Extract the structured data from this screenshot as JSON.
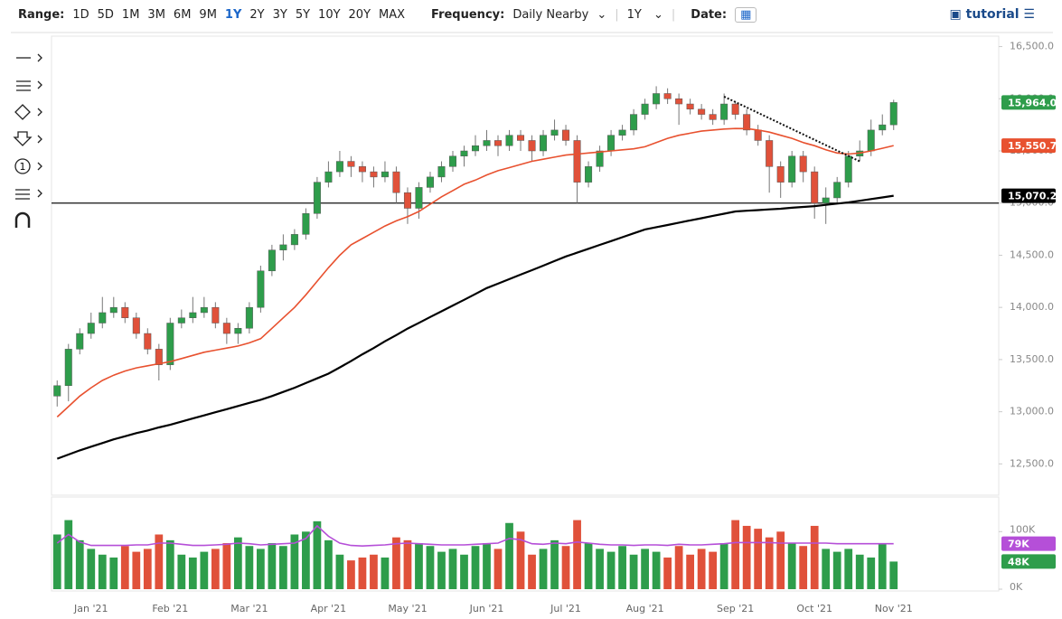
{
  "toolbar": {
    "range_label": "Range:",
    "ranges": [
      "1D",
      "5D",
      "1M",
      "3M",
      "6M",
      "9M",
      "1Y",
      "2Y",
      "3Y",
      "5Y",
      "10Y",
      "20Y",
      "MAX"
    ],
    "active_range": "1Y",
    "frequency_label": "Frequency:",
    "frequency": "Daily Nearby",
    "period": "1Y",
    "date_label": "Date:",
    "brand": "tutorial"
  },
  "sidebar": {
    "counter": "1"
  },
  "chart_data": [
    {
      "type": "candlestick",
      "categories": [
        null,
        null,
        null,
        "Jan '21",
        null,
        null,
        null,
        null,
        null,
        null,
        "Feb '21",
        null,
        null,
        null,
        null,
        null,
        null,
        "Mar '21",
        null,
        null,
        null,
        null,
        null,
        null,
        "Apr '21",
        null,
        null,
        null,
        null,
        null,
        null,
        "May '21",
        null,
        null,
        null,
        null,
        null,
        null,
        "Jun '21",
        null,
        null,
        null,
        null,
        null,
        null,
        "Jul '21",
        null,
        null,
        null,
        null,
        null,
        null,
        "Aug '21",
        null,
        null,
        null,
        null,
        null,
        null,
        null,
        "Sep '21",
        null,
        null,
        null,
        null,
        null,
        null,
        "Oct '21",
        null,
        null,
        null,
        null,
        null,
        null,
        "Nov '21"
      ],
      "open": [
        13150,
        13250,
        13600,
        13750,
        13850,
        13950,
        14000,
        13900,
        13750,
        13600,
        13450,
        13850,
        13900,
        13950,
        14000,
        13850,
        13750,
        13800,
        14000,
        14350,
        14550,
        14600,
        14700,
        14900,
        15200,
        15300,
        15400,
        15350,
        15300,
        15250,
        15300,
        15100,
        14950,
        15150,
        15250,
        15350,
        15450,
        15500,
        15550,
        15600,
        15550,
        15650,
        15600,
        15500,
        15650,
        15700,
        15600,
        15200,
        15350,
        15500,
        15650,
        15700,
        15850,
        15950,
        16050,
        16000,
        15950,
        15900,
        15850,
        15800,
        15950,
        15850,
        15700,
        15600,
        15350,
        15200,
        15450,
        15300,
        15000,
        15050,
        15200,
        15450,
        15500,
        15700,
        15750
      ],
      "high": [
        13300,
        13650,
        13800,
        13950,
        14100,
        14100,
        14050,
        13950,
        13800,
        13650,
        13900,
        13980,
        14100,
        14100,
        14050,
        13900,
        13850,
        14050,
        14400,
        14600,
        14700,
        14750,
        14950,
        15250,
        15400,
        15500,
        15450,
        15400,
        15350,
        15400,
        15350,
        15150,
        15200,
        15300,
        15400,
        15500,
        15550,
        15650,
        15700,
        15650,
        15700,
        15700,
        15650,
        15700,
        15800,
        15750,
        15650,
        15400,
        15550,
        15700,
        15750,
        15900,
        16000,
        16120,
        16100,
        16050,
        16000,
        15950,
        15900,
        16050,
        15980,
        15900,
        15750,
        15650,
        15400,
        15500,
        15500,
        15350,
        15150,
        15250,
        15500,
        15600,
        15800,
        15850,
        15990
      ],
      "low": [
        13050,
        13100,
        13550,
        13700,
        13800,
        13900,
        13850,
        13700,
        13550,
        13300,
        13400,
        13800,
        13850,
        13900,
        13800,
        13650,
        13650,
        13750,
        13950,
        14300,
        14450,
        14550,
        14650,
        14850,
        15150,
        15250,
        15250,
        15200,
        15150,
        15200,
        15000,
        14800,
        14850,
        15100,
        15200,
        15300,
        15350,
        15450,
        15500,
        15450,
        15500,
        15500,
        15400,
        15450,
        15600,
        15550,
        15000,
        15150,
        15300,
        15450,
        15600,
        15650,
        15800,
        15900,
        15950,
        15750,
        15850,
        15800,
        15750,
        15750,
        15800,
        15650,
        15550,
        15100,
        15050,
        15150,
        15200,
        14850,
        14800,
        15000,
        15150,
        15400,
        15450,
        15650,
        15700
      ],
      "close": [
        13250,
        13600,
        13750,
        13850,
        13950,
        14000,
        13900,
        13750,
        13600,
        13450,
        13850,
        13900,
        13950,
        14000,
        13850,
        13750,
        13800,
        14000,
        14350,
        14550,
        14600,
        14700,
        14900,
        15200,
        15300,
        15400,
        15350,
        15300,
        15250,
        15300,
        15100,
        14950,
        15150,
        15250,
        15350,
        15450,
        15500,
        15550,
        15600,
        15550,
        15650,
        15600,
        15500,
        15650,
        15700,
        15600,
        15200,
        15350,
        15500,
        15650,
        15700,
        15850,
        15950,
        16050,
        16000,
        15950,
        15900,
        15850,
        15800,
        15950,
        15850,
        15700,
        15600,
        15350,
        15200,
        15450,
        15300,
        15000,
        15050,
        15200,
        15450,
        15500,
        15700,
        15750,
        15964
      ],
      "close_label": "15,964.0",
      "up_color": "#2e9d4b",
      "down_color": "#e0513a",
      "series": [
        {
          "color": "#e8512f",
          "values": [
            12950,
            13050,
            13150,
            13230,
            13300,
            13350,
            13390,
            13420,
            13440,
            13460,
            13480,
            13510,
            13540,
            13570,
            13590,
            13610,
            13630,
            13660,
            13700,
            13800,
            13900,
            14000,
            14120,
            14250,
            14380,
            14500,
            14600,
            14660,
            14720,
            14780,
            14830,
            14870,
            14920,
            14990,
            15060,
            15120,
            15180,
            15220,
            15270,
            15310,
            15340,
            15370,
            15400,
            15420,
            15440,
            15460,
            15470,
            15480,
            15490,
            15500,
            15510,
            15520,
            15540,
            15580,
            15620,
            15650,
            15670,
            15690,
            15700,
            15710,
            15715,
            15714,
            15700,
            15680,
            15650,
            15620,
            15580,
            15550,
            15510,
            15480,
            15470,
            15480,
            15500,
            15525,
            15550.7
          ],
          "last_label": "15,550.7"
        },
        {
          "color": "#000000",
          "values": [
            12550,
            12590,
            12630,
            12665,
            12700,
            12735,
            12765,
            12795,
            12820,
            12850,
            12875,
            12905,
            12935,
            12965,
            12995,
            13025,
            13055,
            13085,
            13115,
            13150,
            13190,
            13230,
            13275,
            13320,
            13365,
            13425,
            13485,
            13550,
            13610,
            13675,
            13735,
            13797,
            13852,
            13908,
            13963,
            14018,
            14073,
            14129,
            14185,
            14228,
            14271,
            14314,
            14357,
            14400,
            14444,
            14488,
            14525,
            14562,
            14599,
            14636,
            14673,
            14710,
            14747,
            14769,
            14790,
            14812,
            14834,
            14855,
            14877,
            14898,
            14920,
            14927,
            14933,
            14940,
            14946,
            14955,
            14963,
            14971,
            14983,
            14995,
            15006,
            15022,
            15038,
            15054,
            15070.2
          ],
          "last_label": "15,070.2"
        }
      ],
      "level": 15000,
      "trendline": {
        "start": [
          59,
          16020
        ],
        "end": [
          71,
          15400
        ]
      },
      "ylim": [
        12200,
        16600
      ],
      "yticks": [
        {
          "value": 12500,
          "label": "12,500.0"
        },
        {
          "value": 13000,
          "label": "13,000.0"
        },
        {
          "value": 13500,
          "label": "13,500.0"
        },
        {
          "value": 14000,
          "label": "14,000.0"
        },
        {
          "value": 14500,
          "label": "14,500.0"
        },
        {
          "value": 15000,
          "label": "15,000.0"
        },
        {
          "value": 15500,
          "label": "15,500.0"
        },
        {
          "value": 16000,
          "label": "16,000.0"
        },
        {
          "value": 16500,
          "label": "16,500.0"
        }
      ]
    },
    {
      "type": "bar",
      "values": [
        95000,
        120000,
        85000,
        70000,
        60000,
        55000,
        75000,
        65000,
        70000,
        95000,
        85000,
        60000,
        55000,
        65000,
        70000,
        80000,
        90000,
        75000,
        70000,
        80000,
        75000,
        95000,
        100000,
        118000,
        85000,
        60000,
        50000,
        55000,
        60000,
        55000,
        90000,
        85000,
        80000,
        75000,
        65000,
        70000,
        60000,
        75000,
        80000,
        70000,
        115000,
        100000,
        60000,
        70000,
        85000,
        75000,
        120000,
        80000,
        70000,
        65000,
        75000,
        60000,
        70000,
        65000,
        55000,
        75000,
        60000,
        70000,
        65000,
        80000,
        120000,
        110000,
        105000,
        90000,
        100000,
        80000,
        75000,
        110000,
        70000,
        65000,
        70000,
        60000,
        55000,
        80000,
        48000
      ],
      "last_label": "48K",
      "series": [
        {
          "color": "#b54fd8",
          "values": [
            80000,
            95000,
            82000,
            76000,
            76000,
            76000,
            76000,
            77000,
            77000,
            80000,
            80000,
            78000,
            76000,
            76000,
            77000,
            78000,
            80000,
            79000,
            77000,
            78000,
            79000,
            80000,
            88000,
            110000,
            92000,
            80000,
            76000,
            75000,
            76000,
            77000,
            79000,
            80000,
            79000,
            78000,
            77000,
            77000,
            77000,
            78000,
            79000,
            80000,
            88000,
            86000,
            79000,
            78000,
            80000,
            79000,
            82000,
            80000,
            78000,
            77000,
            77000,
            76000,
            77000,
            77000,
            76000,
            78000,
            77000,
            77000,
            78000,
            79000,
            81000,
            81000,
            81000,
            81000,
            80000,
            80000,
            80000,
            80000,
            80000,
            79000,
            79000,
            79000,
            79000,
            79000,
            79000
          ],
          "last_label": "79K"
        }
      ],
      "ylim": [
        0,
        157000
      ],
      "yticks": [
        {
          "value": 0,
          "label": "0K"
        },
        {
          "value": 100000,
          "label": "100K"
        }
      ]
    }
  ]
}
